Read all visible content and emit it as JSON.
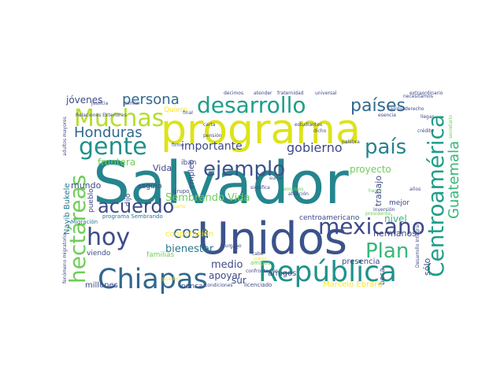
{
  "words": [
    "Salvador",
    "Unidos",
    "programa",
    "Centroamérica",
    "República",
    "Chiapas",
    "mexicano",
    "desarrollo",
    "hectáreas",
    "Muchas",
    "gente",
    "hoy",
    "acuerdo",
    "ejemplo",
    "país",
    "países",
    "Plan",
    "Guatemala",
    "Honduras",
    "persona",
    "cosa",
    "gobierno",
    "importante",
    "bienestar",
    "Sembrando Vida",
    "frontera",
    "Vida",
    "mundo",
    "proyecto",
    "trabajo",
    "hermanos",
    "nivel",
    "sólo",
    "medio",
    "apoyar",
    "sur",
    "amigos",
    "centroamericano",
    "jóvenes",
    "empleo",
    "Nayib Bukele",
    "cooperación",
    "millones",
    "nunca",
    "viendo",
    "familias",
    "programa Sembrando",
    "presencia",
    "beca",
    "Marcelo Ebrard",
    "mejor",
    "seguro",
    "dijo",
    "iban",
    "grupo",
    "pueblo",
    "Quiero",
    "Migración",
    "justicia",
    "similar",
    "decimos",
    "atender",
    "fraternidad",
    "universal",
    "extraordinario",
    "secretario",
    "crédito",
    "estudiantes",
    "carta",
    "pensión",
    "final",
    "firme",
    "significa",
    "licenciado",
    "condiciones",
    "confrontación",
    "inversión",
    "adultos mayores",
    "Relaciones Exteriores",
    "esencia",
    "derecho",
    "cambiar",
    "necesitamos",
    "llegar",
    "presidente",
    "Desarrollo Integral",
    "fenómeno migratorio",
    "palabra",
    "dicho",
    "atención",
    "suma",
    "amigos",
    "vez",
    "pueden",
    "parte",
    "humano",
    "cabo",
    "juego",
    "años",
    "hacer",
    "empleos"
  ]
}
